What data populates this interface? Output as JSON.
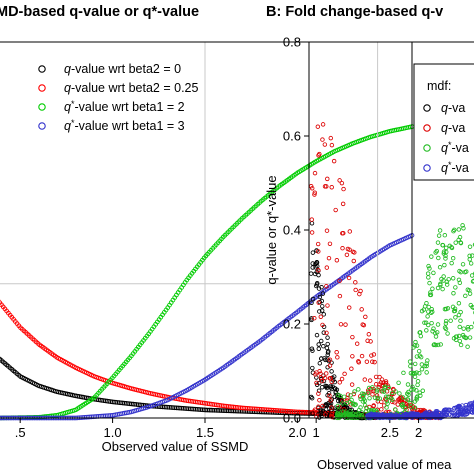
{
  "chart_data": [
    {
      "panel": "A",
      "type": "scatter",
      "title": "MD-based q-value or q*-value",
      "xlabel": "Observed value of SSMD",
      "ylabel": "",
      "xlim": [
        0.38,
        2.62
      ],
      "ylim": [
        0,
        0.56
      ],
      "x_ticks": [
        {
          "value": 0.5,
          "label": ".5"
        },
        {
          "value": 1.0,
          "label": "1.0"
        },
        {
          "value": 1.5,
          "label": "1.5"
        },
        {
          "value": 2.0,
          "label": "2.0"
        },
        {
          "value": 2.5,
          "label": "2.5"
        }
      ],
      "grid": {
        "vertical": [
          1.5
        ],
        "horizontal": [
          0.2
        ]
      },
      "legend_position": "top-right",
      "series": [
        {
          "name": "q-value wrt beta2 = 0",
          "legend_prefix": "q",
          "legend_sup": "",
          "legend_rest": "-value wrt beta2 = 0",
          "color": "#000000",
          "x": [
            0.38,
            0.5,
            0.6,
            0.7,
            0.8,
            0.9,
            1.0,
            1.1,
            1.2,
            1.3,
            1.4,
            1.5,
            1.6,
            1.7,
            1.8,
            1.9,
            2.0,
            2.1,
            2.2,
            2.3,
            2.4,
            2.5,
            2.62
          ],
          "y": [
            0.09,
            0.062,
            0.048,
            0.039,
            0.033,
            0.028,
            0.024,
            0.021,
            0.018,
            0.016,
            0.014,
            0.012,
            0.011,
            0.01,
            0.009,
            0.008,
            0.007,
            0.0065,
            0.006,
            0.0055,
            0.005,
            0.0045,
            0.004
          ]
        },
        {
          "name": "q-value wrt beta2 = 0.25",
          "legend_prefix": "q",
          "legend_sup": "",
          "legend_rest": "-value wrt beta2 = 0.25",
          "color": "#ff0000",
          "x": [
            0.38,
            0.5,
            0.6,
            0.7,
            0.8,
            0.9,
            1.0,
            1.1,
            1.2,
            1.3,
            1.4,
            1.5,
            1.6,
            1.7,
            1.8,
            1.9,
            2.0,
            2.1,
            2.2,
            2.3,
            2.4,
            2.5,
            2.62
          ],
          "y": [
            0.175,
            0.135,
            0.11,
            0.09,
            0.075,
            0.062,
            0.052,
            0.044,
            0.037,
            0.031,
            0.026,
            0.022,
            0.018,
            0.015,
            0.013,
            0.011,
            0.009,
            0.008,
            0.007,
            0.006,
            0.005,
            0.0045,
            0.004
          ]
        },
        {
          "name": "q*-value wrt beta1 = 2",
          "legend_prefix": "q",
          "legend_sup": "*",
          "legend_rest": "-value wrt beta1 = 2",
          "color": "#00cc00",
          "x": [
            0.38,
            0.6,
            0.7,
            0.8,
            0.9,
            1.0,
            1.1,
            1.2,
            1.3,
            1.4,
            1.5,
            1.6,
            1.7,
            1.8,
            1.9,
            2.0,
            2.1,
            2.2,
            2.3,
            2.4,
            2.5,
            2.62
          ],
          "y": [
            0.0,
            0.001,
            0.004,
            0.012,
            0.03,
            0.06,
            0.092,
            0.127,
            0.165,
            0.205,
            0.24,
            0.27,
            0.297,
            0.322,
            0.345,
            0.365,
            0.382,
            0.397,
            0.409,
            0.419,
            0.427,
            0.434
          ]
        },
        {
          "name": "q*-value wrt beta1 = 3",
          "legend_prefix": "q",
          "legend_sup": "*",
          "legend_rest": "-value wrt beta1 = 3",
          "color": "#3333cc",
          "x": [
            0.38,
            0.8,
            1.0,
            1.1,
            1.2,
            1.3,
            1.4,
            1.5,
            1.6,
            1.7,
            1.8,
            1.9,
            2.0,
            2.1,
            2.2,
            2.3,
            2.4,
            2.5,
            2.62
          ],
          "y": [
            0.0,
            0.0,
            0.004,
            0.009,
            0.017,
            0.027,
            0.041,
            0.057,
            0.075,
            0.095,
            0.115,
            0.137,
            0.158,
            0.18,
            0.2,
            0.22,
            0.24,
            0.257,
            0.272
          ]
        }
      ]
    },
    {
      "panel": "B",
      "type": "scatter",
      "title": "B: Fold change-based q-v",
      "xlabel": "Observed value of mea",
      "ylabel": "q-value or q*-value",
      "xlim": [
        0.93,
        2.6
      ],
      "ylim": [
        0,
        0.8
      ],
      "x_ticks": [
        {
          "value": 1,
          "label": "1"
        },
        {
          "value": 2,
          "label": "2"
        }
      ],
      "y_ticks": [
        0.0,
        0.2,
        0.4,
        0.6,
        0.8
      ],
      "grid": {
        "vertical": [
          1.6
        ],
        "horizontal": []
      },
      "legend_title": "mdf:",
      "legend_position": "top-right",
      "series": [
        {
          "name": "q-va",
          "legend_prefix": "q",
          "legend_sup": "",
          "legend_rest": "-va",
          "color": "#000000",
          "x": [
            0.95,
            1.0,
            1.05,
            1.1,
            1.15,
            1.2,
            1.25,
            1.3,
            1.4,
            1.5,
            1.6
          ],
          "y": [
            0.45,
            0.38,
            0.3,
            0.2,
            0.12,
            0.07,
            0.04,
            0.025,
            0.012,
            0.006,
            0.003
          ]
        },
        {
          "name": "q-va",
          "legend_prefix": "q",
          "legend_sup": "",
          "legend_rest": "-va",
          "color": "#dd0000",
          "x": [
            0.95,
            1.0,
            1.1,
            1.15,
            1.2,
            1.25,
            1.3,
            1.35,
            1.4,
            1.5,
            1.6,
            1.8,
            2.0,
            2.2
          ],
          "y": [
            0.64,
            0.645,
            0.64,
            0.62,
            0.57,
            0.52,
            0.46,
            0.4,
            0.32,
            0.2,
            0.11,
            0.05,
            0.02,
            0.008
          ]
        },
        {
          "name": "q*-va",
          "legend_prefix": "q",
          "legend_sup": "*",
          "legend_rest": "-va",
          "color": "#22bb22",
          "x": [
            1.2,
            1.5,
            1.7,
            1.8,
            1.9,
            2.0,
            2.05,
            2.1,
            2.15,
            2.2,
            2.3,
            2.4,
            2.5,
            2.6
          ],
          "y": [
            0.0,
            0.003,
            0.01,
            0.02,
            0.05,
            0.1,
            0.16,
            0.22,
            0.26,
            0.275,
            0.28,
            0.28,
            0.28,
            0.28
          ]
        },
        {
          "name": "q*-va",
          "legend_prefix": "q",
          "legend_sup": "*",
          "legend_rest": "-va",
          "color": "#3333cc",
          "x": [
            1.5,
            1.8,
            2.0,
            2.2,
            2.3,
            2.4,
            2.5,
            2.6
          ],
          "y": [
            0.0,
            0.0,
            0.002,
            0.006,
            0.01,
            0.015,
            0.02,
            0.025
          ]
        }
      ]
    }
  ]
}
